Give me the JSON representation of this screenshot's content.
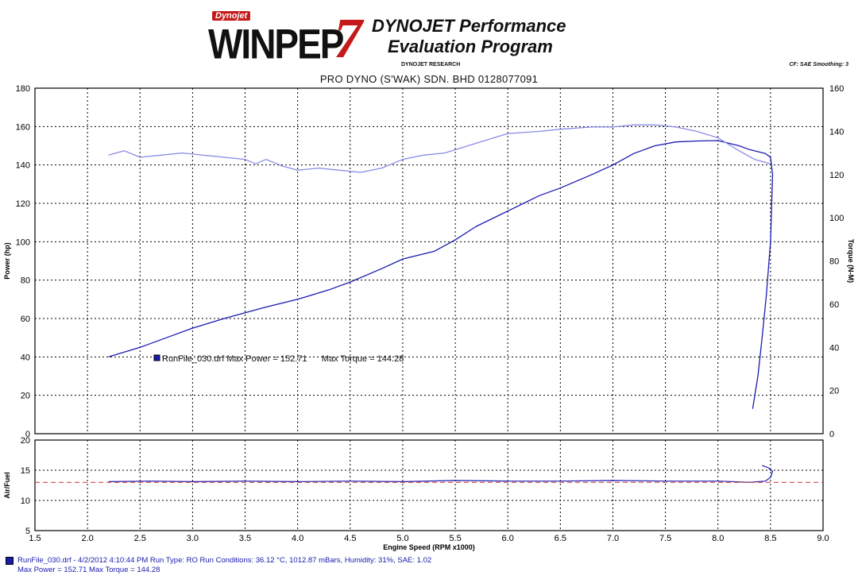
{
  "header": {
    "logo_small": "Dynojet",
    "logo_main": "WINPEP",
    "logo_number": "7",
    "title_line1": "DYNOJET Performance",
    "title_line2": "Evaluation Program",
    "research": "DYNOJET RESEARCH",
    "cf_info": "CF: SAE Smoothing: 3",
    "shop": "PRO DYNO (S'WAK) SDN. BHD 0128077091"
  },
  "legend": {
    "text": "RunFile_030.drf Max Power = 152.71      Max Torque = 144.28",
    "color": "#1a1ab0"
  },
  "footer": {
    "line1": "RunFile_030.drf - 4/2/2012 4:10:44 PM  Run Type: RO  Run Conditions: 36.12 °C, 1012.87 mBars,  Humidity:  31%, SAE: 1.02",
    "line2": "Max Power = 152.71  Max Torque = 144.28"
  },
  "colors": {
    "power": "#1a1ab0",
    "torque": "#8a8ae6",
    "afr": "#1a1ab0",
    "afr_target": "#d03030",
    "grid": "#000000"
  },
  "chart_data": [
    {
      "type": "line",
      "xlabel": "",
      "ylabel": "Power (hp)",
      "y2label": "Torque (N-M)",
      "xlim": [
        1.5,
        9.0
      ],
      "ylim": [
        0,
        180
      ],
      "y2lim": [
        0,
        160
      ],
      "x_ticks": [
        1.5,
        2.0,
        2.5,
        3.0,
        3.5,
        4.0,
        4.5,
        5.0,
        5.5,
        6.0,
        6.5,
        7.0,
        7.5,
        8.0,
        8.5,
        9.0
      ],
      "y_ticks": [
        0,
        20,
        40,
        60,
        80,
        100,
        120,
        140,
        160,
        180
      ],
      "y2_ticks": [
        0,
        20,
        40,
        60,
        80,
        100,
        120,
        140,
        160
      ],
      "grid": true,
      "series": [
        {
          "name": "Power",
          "axis": "left",
          "x": [
            2.2,
            2.5,
            2.8,
            3.0,
            3.3,
            3.5,
            3.7,
            4.0,
            4.3,
            4.5,
            4.8,
            5.0,
            5.3,
            5.5,
            5.7,
            6.0,
            6.3,
            6.5,
            6.8,
            7.0,
            7.2,
            7.4,
            7.6,
            7.8,
            8.0,
            8.2,
            8.3,
            8.45,
            8.5,
            8.52,
            8.5,
            8.46,
            8.42,
            8.38,
            8.33
          ],
          "y": [
            40,
            45,
            51,
            55,
            60,
            63,
            66,
            70,
            75,
            79,
            86,
            91,
            95,
            101,
            108,
            116,
            124,
            128,
            135,
            140,
            146,
            150,
            152,
            152.5,
            152.7,
            150,
            148,
            146,
            144,
            135,
            100,
            72,
            50,
            30,
            13
          ]
        },
        {
          "name": "Torque",
          "axis": "right",
          "x": [
            2.2,
            2.35,
            2.5,
            2.7,
            2.9,
            3.1,
            3.3,
            3.5,
            3.6,
            3.7,
            3.85,
            4.0,
            4.2,
            4.4,
            4.6,
            4.8,
            5.0,
            5.2,
            5.4,
            5.6,
            5.8,
            6.0,
            6.3,
            6.5,
            6.8,
            7.0,
            7.2,
            7.4,
            7.6,
            7.8,
            8.0,
            8.2,
            8.35,
            8.5
          ],
          "y": [
            129,
            131,
            128,
            129,
            130,
            129,
            128,
            127,
            125,
            127,
            124,
            122,
            123,
            122,
            121,
            123,
            127,
            129,
            130,
            133,
            136,
            139,
            140,
            141,
            142,
            142,
            143,
            143,
            142,
            140,
            137,
            131,
            127,
            125
          ]
        }
      ]
    },
    {
      "type": "line",
      "xlabel": "Engine Speed (RPM x1000)",
      "ylabel": "Air/Fuel",
      "xlim": [
        1.5,
        9.0
      ],
      "ylim": [
        5,
        20
      ],
      "x_ticks": [
        1.5,
        2.0,
        2.5,
        3.0,
        3.5,
        4.0,
        4.5,
        5.0,
        5.5,
        6.0,
        6.5,
        7.0,
        7.5,
        8.0,
        8.5,
        9.0
      ],
      "x_tick_labels": [
        "1.5",
        "2.0",
        "2.5",
        "3.0",
        "3.5",
        "4.0",
        "4.5",
        "5.0",
        "5.5",
        "6.0",
        "6.5",
        "7.0",
        "7.5",
        "8.0",
        "8.5",
        "9.0"
      ],
      "y_ticks": [
        5,
        10,
        15,
        20
      ],
      "y_tick_labels": [
        "5",
        "10",
        "15",
        "20"
      ],
      "grid": true,
      "series": [
        {
          "name": "Air/Fuel",
          "x": [
            2.2,
            2.6,
            3.0,
            3.5,
            4.0,
            4.5,
            5.0,
            5.5,
            6.0,
            6.5,
            7.0,
            7.5,
            8.0,
            8.3,
            8.45,
            8.5,
            8.52,
            8.48,
            8.42
          ],
          "y": [
            13.1,
            13.2,
            13.1,
            13.2,
            13.1,
            13.2,
            13.1,
            13.3,
            13.2,
            13.2,
            13.3,
            13.2,
            13.2,
            13.0,
            13.2,
            13.8,
            14.8,
            15.4,
            15.8
          ]
        },
        {
          "name": "Target",
          "x": [
            1.5,
            9.0
          ],
          "y": [
            13.0,
            13.0
          ],
          "dashed": true
        }
      ]
    }
  ]
}
